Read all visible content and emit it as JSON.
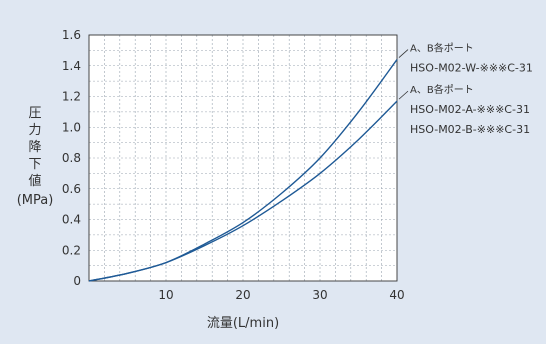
{
  "chart_data": {
    "type": "line",
    "title": "",
    "xlabel": "流量(L/min)",
    "ylabel_chars": [
      "圧",
      "力",
      "降",
      "下",
      "値"
    ],
    "ylabel_unit": "(MPa)",
    "xlim": [
      0,
      40
    ],
    "ylim": [
      0,
      1.6
    ],
    "xticks": [
      10,
      20,
      30,
      40
    ],
    "yticks": [
      0,
      0.2,
      0.4,
      0.6,
      0.8,
      1.0,
      1.2,
      1.4,
      1.6
    ],
    "ytick_labels": [
      "0",
      "0.2",
      "0.4",
      "0.6",
      "0.8",
      "1.0",
      "1.2",
      "1.4",
      "1.6"
    ],
    "grid": true,
    "series": [
      {
        "color": "#1f5a96",
        "x": [
          0,
          5,
          10,
          15,
          20,
          25,
          30,
          35,
          40
        ],
        "y": [
          0,
          0.05,
          0.12,
          0.24,
          0.38,
          0.57,
          0.8,
          1.1,
          1.44
        ]
      },
      {
        "color": "#1f5a96",
        "x": [
          0,
          5,
          10,
          15,
          20,
          25,
          30,
          35,
          40
        ],
        "y": [
          0,
          0.05,
          0.12,
          0.23,
          0.36,
          0.52,
          0.7,
          0.92,
          1.17
        ]
      }
    ],
    "annotations": [
      {
        "lines": [
          "A、B各ポート",
          "HSO-M02-W-※※※C-31"
        ],
        "series_index": 0
      },
      {
        "lines": [
          "A、B各ポート",
          "HSO-M02-A-※※※C-31",
          "HSO-M02-B-※※※C-31"
        ],
        "series_index": 1
      }
    ]
  },
  "colors": {
    "background": "#dfe7f2",
    "plot_area": "#ffffff",
    "axis": "#333333",
    "grid": "#9aa4b0",
    "line": "#1f5a96"
  }
}
